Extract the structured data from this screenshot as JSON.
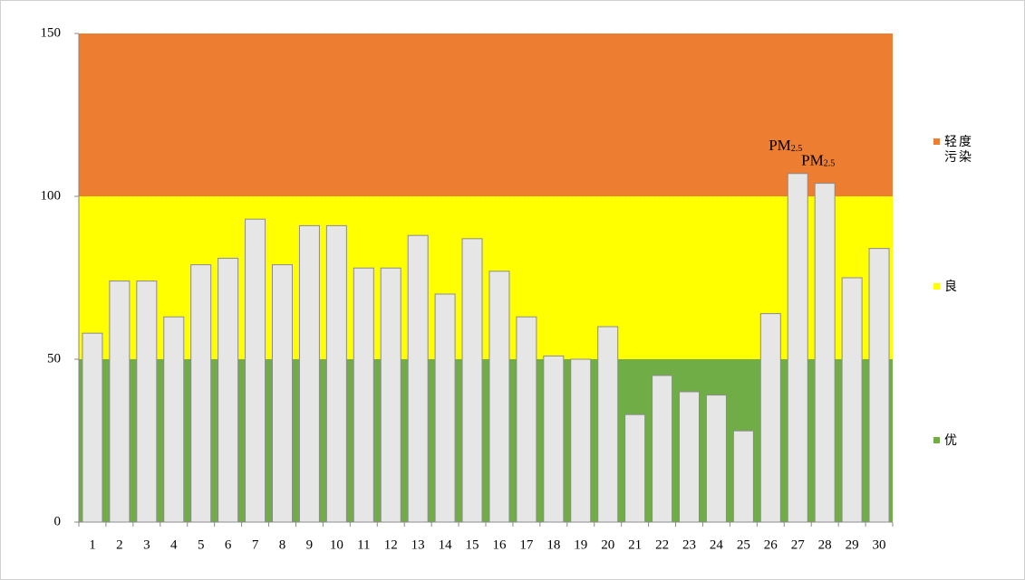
{
  "chart_data": {
    "type": "bar",
    "categories": [
      "1",
      "2",
      "3",
      "4",
      "5",
      "6",
      "7",
      "8",
      "9",
      "10",
      "11",
      "12",
      "13",
      "14",
      "15",
      "16",
      "17",
      "18",
      "19",
      "20",
      "21",
      "22",
      "23",
      "24",
      "25",
      "26",
      "27",
      "28",
      "29",
      "30"
    ],
    "values": [
      58,
      74,
      74,
      63,
      79,
      81,
      93,
      79,
      91,
      91,
      78,
      78,
      88,
      70,
      87,
      77,
      63,
      51,
      50,
      60,
      33,
      45,
      40,
      39,
      28,
      64,
      107,
      104,
      75,
      84
    ],
    "color": "#e6e6e6",
    "ylim": [
      0,
      150
    ],
    "yticks": [
      0,
      50,
      100,
      150
    ],
    "bands": [
      {
        "name": "轻度污染",
        "from": 100,
        "to": 150,
        "color": "#ed7d31"
      },
      {
        "name": "良",
        "from": 50,
        "to": 100,
        "color": "#ffff00"
      },
      {
        "name": "优",
        "from": 0,
        "to": 50,
        "color": "#70ad47"
      }
    ],
    "annotations": [
      {
        "x": "27",
        "text": "PM",
        "subscript": "2.5"
      },
      {
        "x": "28",
        "text": "PM",
        "subscript": "2.5"
      }
    ]
  }
}
